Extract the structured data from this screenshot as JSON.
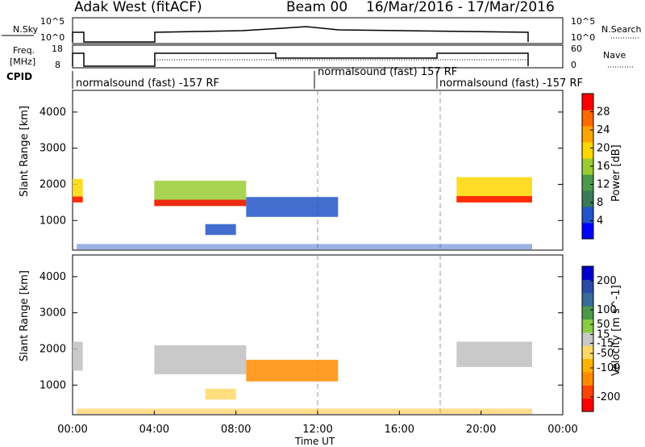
{
  "header": {
    "site": "Adak West (fitACF)",
    "beam": "Beam 00",
    "dates": "16/Mar/2016 - 17/Mar/2016"
  },
  "panels": {
    "nsky": {
      "label": "N.Sky",
      "ticks": [
        "10^5",
        "10^0"
      ],
      "right_label": "N.Search",
      "right_ticks": [
        "10^5",
        "10^0"
      ]
    },
    "freq": {
      "label_line1": "Freq.",
      "label_line2": "[MHz]",
      "ticks": [
        "18",
        "8"
      ],
      "right_label": "Nave",
      "right_ticks": [
        "60",
        "0"
      ]
    },
    "cpid": {
      "label": "CPID",
      "segments": [
        "normalsound (fast) -157 RF",
        "normalsound (fast) 157 RF",
        "normalsound (fast) -157 RF"
      ]
    }
  },
  "colors": {
    "power": [
      "#0000ff",
      "#2255c8",
      "#3a7a5a",
      "#4a9a4a",
      "#9acd32",
      "#ffd700",
      "#ffa500",
      "#ff6a00",
      "#ff0000"
    ],
    "velocity": [
      "#ff0000",
      "#ff4400",
      "#ff8c00",
      "#ffb300",
      "#ffd966",
      "#c8c8c8",
      "#88cc44",
      "#4a9a4a",
      "#3a6a9a",
      "#2a4aa8",
      "#0000cc"
    ],
    "ground_scatter": "#c0c0c0"
  },
  "chart_data": [
    {
      "type": "heatmap",
      "title": "",
      "xlabel": "Time UT",
      "ylabel": "Slant Range [km]",
      "xlim_hours": [
        0,
        24
      ],
      "ylim": [
        180,
        4600
      ],
      "x_ticks": [
        "00:00",
        "04:00",
        "08:00",
        "12:00",
        "16:00",
        "20:00",
        "00:00"
      ],
      "y_ticks": [
        1000,
        2000,
        3000,
        4000
      ],
      "colorbar": {
        "label": "Power [dB]",
        "ticks": [
          4,
          8,
          12,
          16,
          20,
          24,
          28
        ],
        "range": [
          0,
          32
        ]
      },
      "scatter_bands": [
        {
          "t": [
            0.0,
            0.5
          ],
          "r": [
            1500,
            2150
          ],
          "value": 18
        },
        {
          "t": [
            4.0,
            8.5
          ],
          "r": [
            1400,
            2100
          ],
          "value": 16
        },
        {
          "t": [
            8.5,
            13.0
          ],
          "r": [
            1100,
            1650
          ],
          "value": 6
        },
        {
          "t": [
            18.8,
            22.5
          ],
          "r": [
            1500,
            2200
          ],
          "value": 18
        },
        {
          "t": [
            6.5,
            8.0
          ],
          "r": [
            600,
            900
          ],
          "value": 5
        }
      ]
    },
    {
      "type": "heatmap",
      "title": "",
      "xlabel": "Time UT",
      "ylabel": "Slant Range [km]",
      "xlim_hours": [
        0,
        24
      ],
      "ylim": [
        180,
        4600
      ],
      "x_ticks": [
        "00:00",
        "04:00",
        "08:00",
        "12:00",
        "16:00",
        "20:00",
        "00:00"
      ],
      "y_ticks": [
        1000,
        2000,
        3000,
        4000
      ],
      "colorbar": {
        "label": "Velocity [m s^-1]",
        "ticks": [
          200,
          100,
          50,
          15,
          -15,
          -50,
          -100,
          -200
        ],
        "range": [
          -250,
          250
        ]
      },
      "scatter_bands": [
        {
          "t": [
            0.0,
            0.5
          ],
          "r": [
            1400,
            2200
          ],
          "value": 0
        },
        {
          "t": [
            4.0,
            8.5
          ],
          "r": [
            1300,
            2100
          ],
          "value": 0
        },
        {
          "t": [
            8.5,
            13.0
          ],
          "r": [
            1100,
            1700
          ],
          "value": -120
        },
        {
          "t": [
            18.8,
            22.5
          ],
          "r": [
            1500,
            2200
          ],
          "value": 0
        },
        {
          "t": [
            6.5,
            8.0
          ],
          "r": [
            600,
            900
          ],
          "value": -60
        }
      ]
    }
  ]
}
